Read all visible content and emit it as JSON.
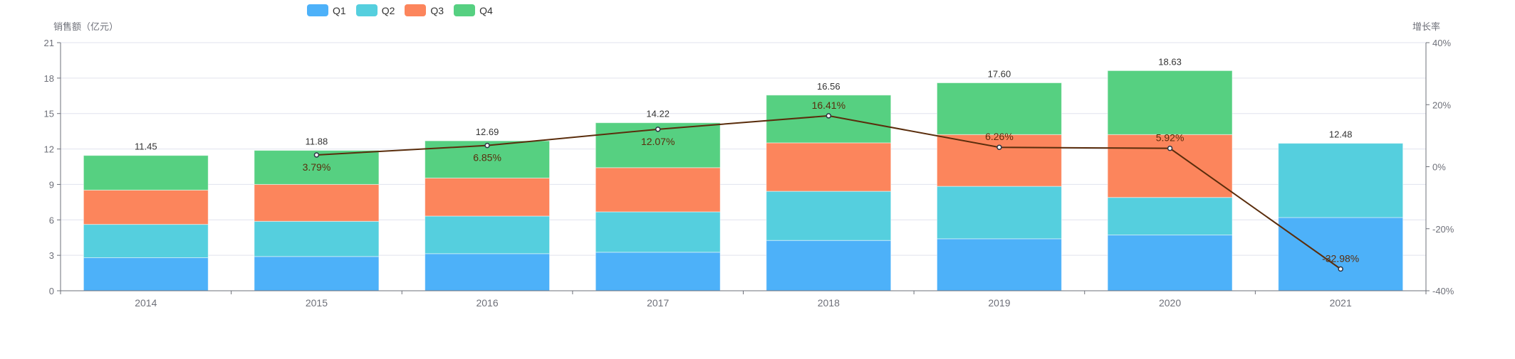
{
  "chart_data": {
    "type": "bar",
    "categories": [
      "2014",
      "2015",
      "2016",
      "2017",
      "2018",
      "2019",
      "2020",
      "2021"
    ],
    "stacked": true,
    "series": [
      {
        "name": "Q1",
        "color": "#4db1f9",
        "values": [
          2.8,
          2.9,
          3.14,
          3.26,
          4.26,
          4.4,
          4.72,
          6.2
        ]
      },
      {
        "name": "Q2",
        "color": "#55cfde",
        "values": [
          2.82,
          2.98,
          3.18,
          3.42,
          4.16,
          4.44,
          3.18,
          6.28
        ]
      },
      {
        "name": "Q3",
        "color": "#fc855c",
        "values": [
          2.9,
          3.12,
          3.22,
          3.74,
          4.1,
          4.38,
          5.32,
          null
        ]
      },
      {
        "name": "Q4",
        "color": "#56d081",
        "values": [
          2.93,
          2.88,
          3.15,
          3.8,
          4.04,
          4.38,
          5.41,
          null
        ]
      }
    ],
    "totals": [
      "11.45",
      "11.88",
      "12.69",
      "14.22",
      "16.56",
      "17.60",
      "18.63",
      "12.48"
    ],
    "line": {
      "name": "增长率",
      "color": "#5a2d0c",
      "values": [
        null,
        3.79,
        6.85,
        12.07,
        16.41,
        6.26,
        5.92,
        -32.98
      ],
      "labels": [
        "",
        "3.79%",
        "6.85%",
        "12.07%",
        "16.41%",
        "6.26%",
        "5.92%",
        "-32.98%"
      ]
    },
    "ylabel": "销售额（亿元）",
    "ylabel_right": "增长率",
    "ylim": [
      0,
      21
    ],
    "yticks": [
      "0",
      "3",
      "6",
      "9",
      "12",
      "15",
      "18",
      "21"
    ],
    "ylim_right": [
      -40,
      40
    ],
    "yticks_right": [
      "-40%",
      "-20%",
      "0%",
      "20%",
      "40%"
    ],
    "grid": true,
    "legend_position": "top-center"
  }
}
